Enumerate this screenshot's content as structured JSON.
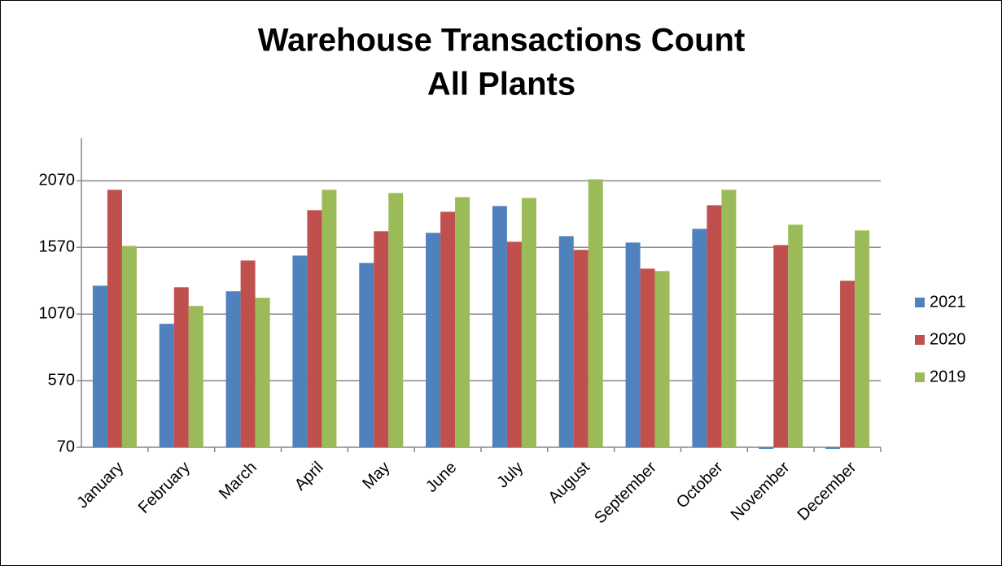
{
  "chart_data": {
    "type": "bar",
    "title": "Warehouse Transactions Count",
    "subtitle": "All Plants",
    "categories": [
      "January",
      "February",
      "March",
      "April",
      "May",
      "June",
      "July",
      "August",
      "September",
      "October",
      "November",
      "December"
    ],
    "series": [
      {
        "name": "2021",
        "color": "#4f81bd",
        "values": [
          1283,
          997,
          1241,
          1509,
          1454,
          1680,
          1881,
          1655,
          1607,
          1710,
          58,
          58
        ]
      },
      {
        "name": "2020",
        "color": "#c0504d",
        "values": [
          2003,
          1271,
          1472,
          1850,
          1692,
          1838,
          1613,
          1552,
          1411,
          1887,
          1588,
          1320
        ]
      },
      {
        "name": "2019",
        "color": "#9bbb59",
        "values": [
          1582,
          1131,
          1192,
          2003,
          1979,
          1948,
          1942,
          2082,
          1393,
          2003,
          1741,
          1698
        ]
      }
    ],
    "ylim": [
      70,
      2390
    ],
    "yticks": [
      70,
      570,
      1070,
      1570,
      2070
    ],
    "grid": true,
    "legend": "right"
  }
}
